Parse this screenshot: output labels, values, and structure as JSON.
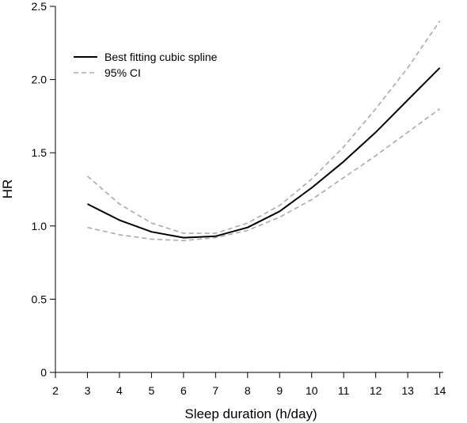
{
  "chart_data": {
    "type": "line",
    "xlabel": "Sleep duration (h/day)",
    "ylabel": "HR",
    "xlim": [
      2,
      14.85
    ],
    "ylim": [
      0,
      2.5
    ],
    "xticks": [
      2,
      3,
      4,
      5,
      6,
      7,
      8,
      9,
      10,
      11,
      12,
      13,
      14
    ],
    "yticks": [
      0,
      0.5,
      1.0,
      1.5,
      2.0,
      2.5
    ],
    "ytick_labels": [
      "0",
      "",
      "1.0",
      "",
      "2.0",
      ""
    ],
    "ytick_labels_full": [
      "0",
      "0.5",
      "1.0",
      "1.5",
      "2.0",
      "2.5"
    ],
    "legend_position": "top-left",
    "series": [
      {
        "name": "Best fitting cubic spline",
        "style": "solid",
        "color": "#000000",
        "x": [
          3,
          4,
          5,
          6,
          7,
          8,
          9,
          10,
          11,
          12,
          13,
          14
        ],
        "y": [
          1.15,
          1.04,
          0.96,
          0.92,
          0.93,
          0.99,
          1.1,
          1.26,
          1.44,
          1.64,
          1.86,
          2.08
        ]
      },
      {
        "name": "95% CI",
        "style": "dashed",
        "color": "#aaaaaa",
        "x": [
          3,
          4,
          5,
          6,
          7,
          8,
          9,
          10,
          11,
          12,
          13,
          14
        ],
        "y": [
          1.34,
          1.15,
          1.02,
          0.95,
          0.95,
          1.02,
          1.14,
          1.32,
          1.54,
          1.8,
          2.08,
          2.4
        ]
      },
      {
        "name": "",
        "style": "dashed",
        "color": "#aaaaaa",
        "x": [
          3,
          4,
          5,
          6,
          7,
          8,
          9,
          10,
          11,
          12,
          13,
          14
        ],
        "y": [
          0.99,
          0.94,
          0.91,
          0.9,
          0.92,
          0.97,
          1.06,
          1.18,
          1.33,
          1.48,
          1.64,
          1.8
        ]
      }
    ]
  }
}
